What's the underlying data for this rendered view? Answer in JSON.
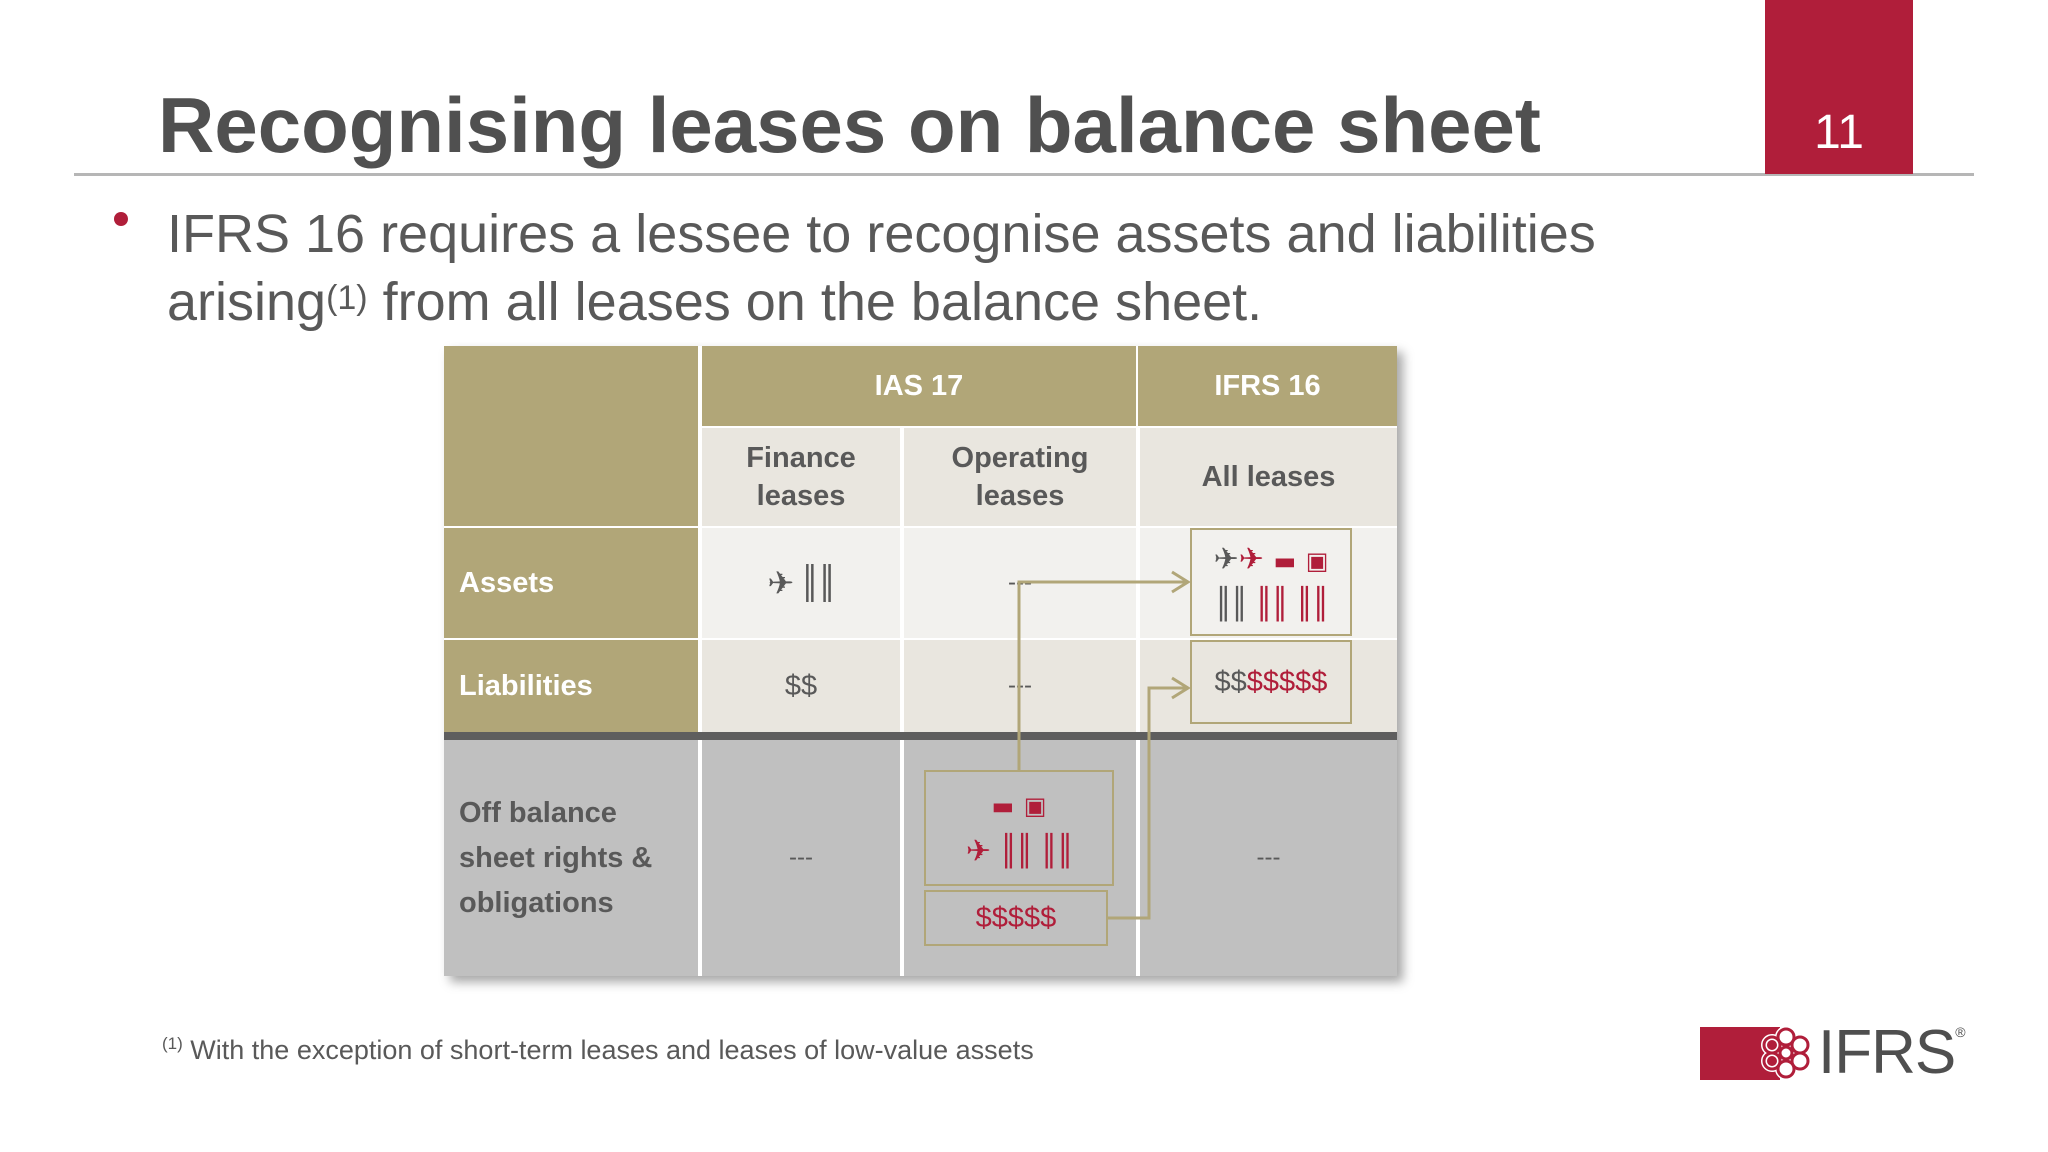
{
  "slide": {
    "title": "Recognising leases on balance sheet",
    "page_number": "11",
    "bullet_line1": "IFRS 16 requires a lessee to recognise assets and liabilities",
    "bullet_line2_a": "arising",
    "bullet_sup": "(1)",
    "bullet_line2_b": " from all leases on the balance sheet.",
    "footnote_sup": "(1)",
    "footnote_text": " With the exception of short-term leases and leases of low-value assets",
    "logo_text": "IFRS",
    "logo_reg": "®"
  },
  "table": {
    "header_ias": "IAS 17",
    "header_ifrs": "IFRS 16",
    "sub_finance": "Finance leases",
    "sub_operating": "Operating leases",
    "sub_all": "All leases",
    "row_assets": "Assets",
    "row_liabilities": "Liabilities",
    "row_off": "Off balance sheet rights & obligations",
    "finance_assets_icons": "✈ 🏛",
    "finance_liabilities": "$$",
    "finance_off": "---",
    "operating_assets": "---",
    "operating_liabilities": "---",
    "operating_off_money": "$$$$$",
    "ifrs_liab_dark": "$$",
    "ifrs_liab_red": "$$$$$",
    "ifrs_off": "---"
  },
  "colors": {
    "accent_red": "#b01e3a",
    "gold": "#b1a678",
    "grey_row": "#c0c0c0",
    "text": "#595959"
  },
  "icons": [
    "airplane-icon",
    "building-icon",
    "car-icon",
    "bus-icon",
    "flower-logo-icon"
  ]
}
